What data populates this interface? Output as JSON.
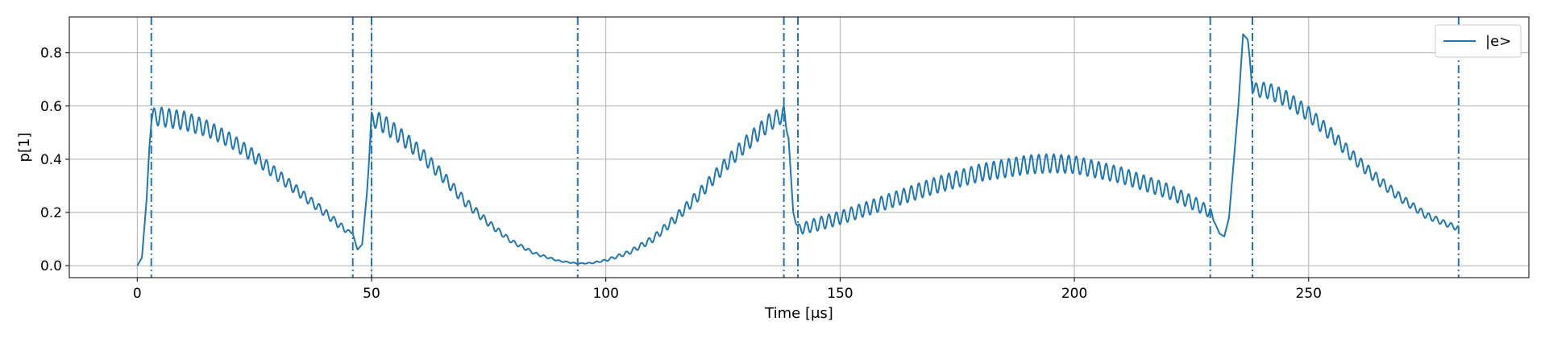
{
  "chart_data": {
    "type": "line",
    "title": "",
    "xlabel": "Time [μs]",
    "ylabel": "p[1]",
    "xlim": [
      -14.5,
      297
    ],
    "ylim": [
      -0.045,
      0.935
    ],
    "xticks": [
      0,
      50,
      100,
      150,
      200,
      250
    ],
    "yticks": [
      0.0,
      0.2,
      0.4,
      0.6,
      0.8
    ],
    "xtick_labels": [
      "0",
      "50",
      "100",
      "150",
      "200",
      "250"
    ],
    "ytick_labels": [
      "0.0",
      "0.2",
      "0.4",
      "0.6",
      "0.8"
    ],
    "grid": true,
    "legend": {
      "placement": "top-right",
      "entries": [
        "|e>"
      ]
    },
    "series": [
      {
        "name": "|e>",
        "color": "#1f77b4",
        "x": [
          0,
          1,
          2,
          2.6,
          3,
          5,
          10,
          15,
          20,
          25,
          30,
          35,
          40,
          44,
          46,
          47,
          48,
          49,
          50,
          52,
          56,
          60,
          65,
          70,
          75,
          80,
          85,
          90,
          94,
          97,
          100,
          105,
          110,
          115,
          120,
          125,
          130,
          135,
          138,
          139,
          140,
          141,
          142,
          145,
          150,
          160,
          170,
          180,
          190,
          195,
          200,
          210,
          220,
          226,
          229,
          230,
          231,
          232,
          233,
          235,
          236,
          237,
          238,
          239,
          241,
          245,
          250,
          255,
          260,
          265,
          270,
          275,
          279,
          282
        ],
        "y": [
          0,
          0.03,
          0.25,
          0.45,
          0.56,
          0.56,
          0.545,
          0.515,
          0.47,
          0.41,
          0.34,
          0.27,
          0.2,
          0.14,
          0.12,
          0.06,
          0.08,
          0.27,
          0.55,
          0.54,
          0.49,
          0.43,
          0.34,
          0.24,
          0.16,
          0.09,
          0.045,
          0.018,
          0.008,
          0.01,
          0.02,
          0.05,
          0.1,
          0.18,
          0.27,
          0.37,
          0.46,
          0.54,
          0.57,
          0.48,
          0.2,
          0.14,
          0.14,
          0.155,
          0.18,
          0.24,
          0.3,
          0.35,
          0.38,
          0.385,
          0.38,
          0.34,
          0.28,
          0.23,
          0.2,
          0.16,
          0.12,
          0.11,
          0.18,
          0.6,
          0.87,
          0.85,
          0.67,
          0.66,
          0.66,
          0.63,
          0.57,
          0.49,
          0.4,
          0.32,
          0.25,
          0.19,
          0.16,
          0.14
        ],
        "amplitude": [
          0,
          0,
          0,
          0,
          0.06,
          0.07,
          0.07,
          0.06,
          0.055,
          0.05,
          0.045,
          0.035,
          0.03,
          0.025,
          0,
          0,
          0,
          0,
          0.05,
          0.07,
          0.06,
          0.055,
          0.045,
          0.035,
          0.025,
          0.015,
          0.01,
          0.005,
          0.003,
          0.004,
          0.008,
          0.015,
          0.025,
          0.035,
          0.045,
          0.05,
          0.06,
          0.065,
          0.06,
          0,
          0,
          0.03,
          0.04,
          0.05,
          0.05,
          0.055,
          0.06,
          0.065,
          0.07,
          0.07,
          0.065,
          0.06,
          0.055,
          0.05,
          0.04,
          0,
          0,
          0,
          0,
          0,
          0,
          0,
          0.04,
          0.05,
          0.06,
          0.06,
          0.055,
          0.05,
          0.045,
          0.04,
          0.03,
          0.025,
          0.02,
          0.02
        ]
      }
    ],
    "vlines": [
      3,
      46,
      50,
      94,
      138,
      141,
      229,
      238,
      282
    ],
    "oscillation_period": 1.6
  }
}
